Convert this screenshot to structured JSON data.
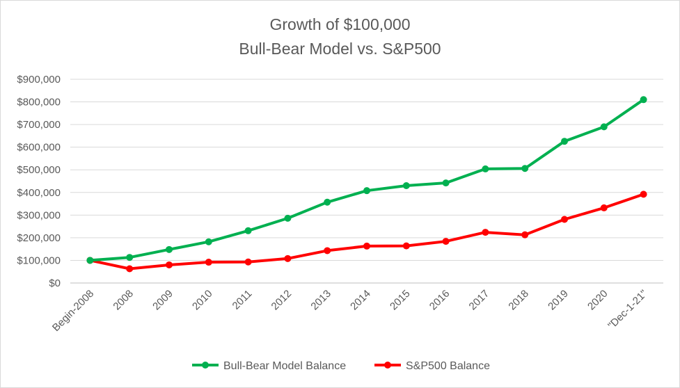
{
  "chart_data": {
    "type": "line",
    "title_line1": "Growth of $100,000",
    "title_line2": "Bull-Bear Model vs. S&P500",
    "categories": [
      "Begin-2008",
      "2008",
      "2009",
      "2010",
      "2011",
      "2012",
      "2013",
      "2014",
      "2015",
      "2016",
      "2017",
      "2018",
      "2019",
      "2020",
      "\"Dec-1-21\""
    ],
    "y_ticks": [
      "$0",
      "$100,000",
      "$200,000",
      "$300,000",
      "$400,000",
      "$500,000",
      "$600,000",
      "$700,000",
      "$800,000",
      "$900,000"
    ],
    "ylim": [
      0,
      900000
    ],
    "grid": true,
    "legend_position": "bottom",
    "series": [
      {
        "name": "Bull-Bear Model Balance",
        "color": "#00b050",
        "values": [
          100000,
          113000,
          148000,
          182000,
          231000,
          286000,
          357000,
          408000,
          430000,
          442000,
          504000,
          506000,
          626000,
          690000,
          810000
        ]
      },
      {
        "name": "S&P500 Balance",
        "color": "#ff0000",
        "values": [
          100000,
          63000,
          80000,
          92000,
          93000,
          108000,
          143000,
          163000,
          164000,
          184000,
          224000,
          213000,
          281000,
          332000,
          392000
        ]
      }
    ]
  }
}
